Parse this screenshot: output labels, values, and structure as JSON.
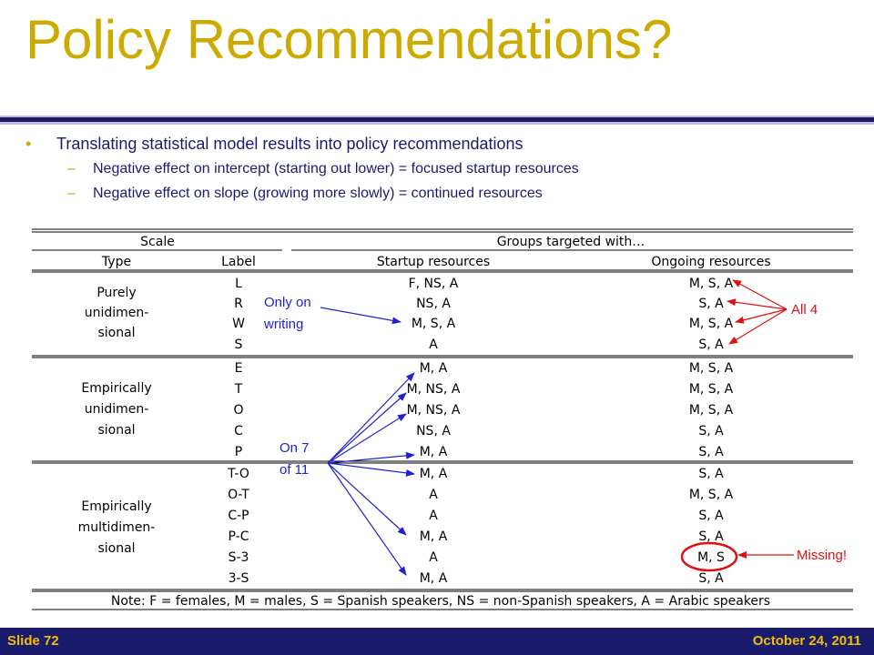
{
  "slide": {
    "title": "Policy Recommendations?",
    "bullet_glyph": "•",
    "dash_glyph": "–",
    "bullet": "Translating statistical model results into policy recommendations",
    "sub_bullets": [
      "Negative effect on intercept (starting out lower) = focused startup resources",
      "Negative effect on slope (growing more slowly) = continued resources"
    ]
  },
  "table": {
    "header_scale": "Scale",
    "header_groups": "Groups targeted with…",
    "col_type": "Type",
    "col_label": "Label",
    "col_startup": "Startup resources",
    "col_ongoing": "Ongoing resources",
    "type_groups": [
      {
        "lines": [
          "Purely",
          "unidimen-",
          "sional"
        ]
      },
      {
        "lines": [
          "Empirically",
          "unidimen-",
          "sional"
        ]
      },
      {
        "lines": [
          "Empirically",
          "multidimen-",
          "sional"
        ]
      }
    ],
    "rows": [
      {
        "label": "L",
        "startup": "F, NS, A",
        "ongoing": "M, S, A"
      },
      {
        "label": "R",
        "startup": "NS, A",
        "ongoing": "S, A"
      },
      {
        "label": "W",
        "startup": "M, S, A",
        "ongoing": "M, S, A"
      },
      {
        "label": "S",
        "startup": "A",
        "ongoing": "S, A"
      },
      {
        "label": "E",
        "startup": "M, A",
        "ongoing": "M, S, A"
      },
      {
        "label": "T",
        "startup": "M, NS, A",
        "ongoing": "M, S, A"
      },
      {
        "label": "O",
        "startup": "M, NS, A",
        "ongoing": "M, S, A"
      },
      {
        "label": "C",
        "startup": "NS, A",
        "ongoing": "S, A"
      },
      {
        "label": "P",
        "startup": "M, A",
        "ongoing": "S, A"
      },
      {
        "label": "T-O",
        "startup": "M, A",
        "ongoing": "S, A"
      },
      {
        "label": "O-T",
        "startup": "A",
        "ongoing": "M, S, A"
      },
      {
        "label": "C-P",
        "startup": "A",
        "ongoing": "S, A"
      },
      {
        "label": "P-C",
        "startup": "M, A",
        "ongoing": "S, A"
      },
      {
        "label": "S-3",
        "startup": "A",
        "ongoing": "M, S"
      },
      {
        "label": "3-S",
        "startup": "M, A",
        "ongoing": "S, A"
      }
    ],
    "note": "Note: F = females, M = males, S = Spanish speakers, NS = non-Spanish speakers, A = Arabic speakers"
  },
  "annotations": {
    "only_on_writing": [
      "Only on",
      "writing"
    ],
    "on_7_of_11": [
      "On 7",
      "of 11"
    ],
    "all_4": "All 4",
    "missing": "Missing!",
    "blue": "#2222cc",
    "red": "#dd1111"
  },
  "footer": {
    "slide_number": "Slide 72",
    "date": "October 24, 2011"
  }
}
